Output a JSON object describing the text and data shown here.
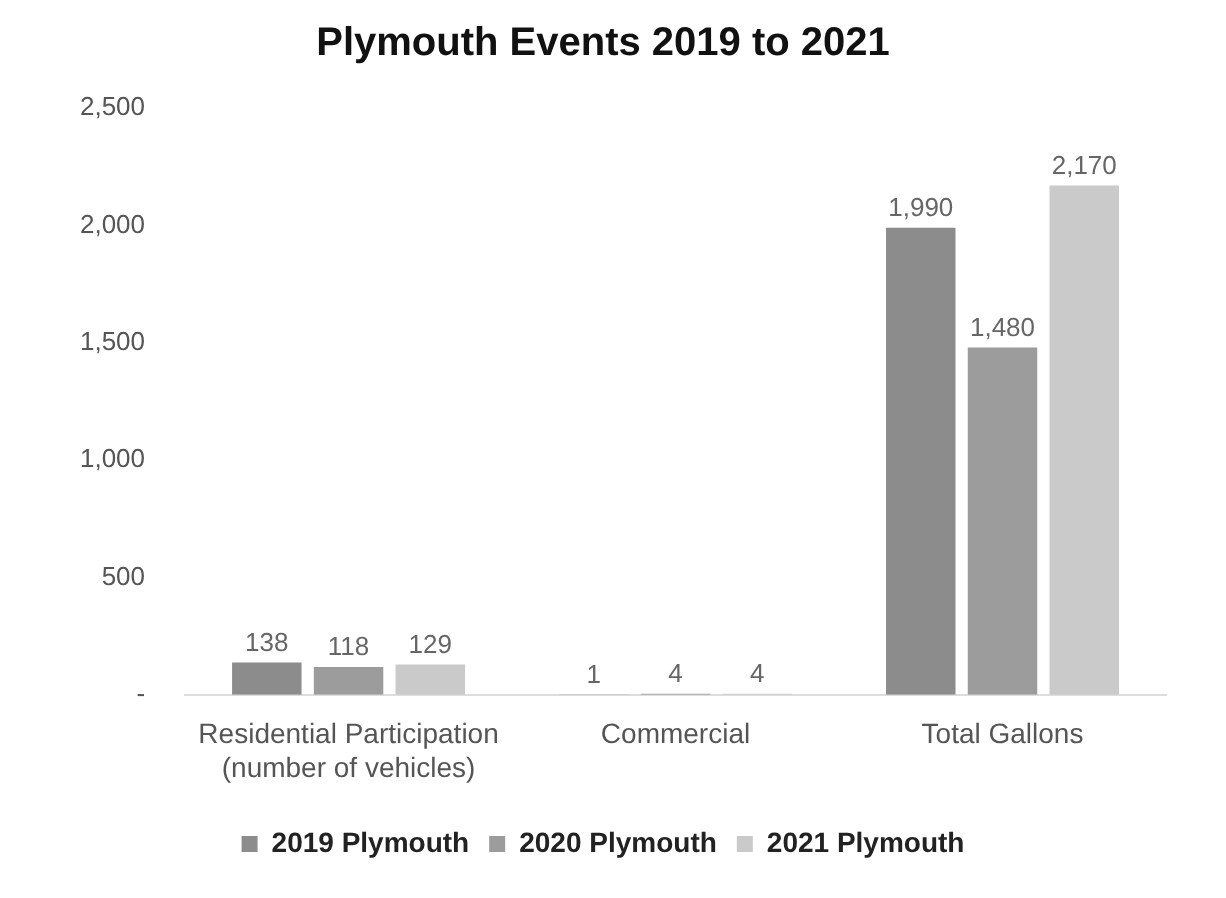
{
  "chart_data": {
    "type": "bar",
    "title": "Plymouth Events 2019 to 2021",
    "categories": [
      "Residential Participation\n(number of vehicles)",
      "Commercial",
      "Total Gallons"
    ],
    "series": [
      {
        "name": "2019 Plymouth",
        "color": "#8c8c8c",
        "values": [
          138,
          1,
          1990
        ],
        "value_labels": [
          "138",
          "1",
          "1,990"
        ]
      },
      {
        "name": "2020 Plymouth",
        "color": "#9c9c9c",
        "values": [
          118,
          4,
          1480
        ],
        "value_labels": [
          "118",
          "4",
          "1,480"
        ]
      },
      {
        "name": "2021 Plymouth",
        "color": "#cacaca",
        "values": [
          129,
          4,
          2170
        ],
        "value_labels": [
          "129",
          "4",
          "2,170"
        ]
      }
    ],
    "ylim": [
      0,
      2500
    ],
    "yticks": [
      {
        "value": 0,
        "label": "-"
      },
      500,
      {
        "value": 1000,
        "label": "1,000"
      },
      {
        "value": 1500,
        "label": "1,500"
      },
      {
        "value": 2000,
        "label": "2,000"
      },
      {
        "value": 2500,
        "label": "2,500"
      }
    ],
    "grid": false,
    "legend": "bottom"
  }
}
